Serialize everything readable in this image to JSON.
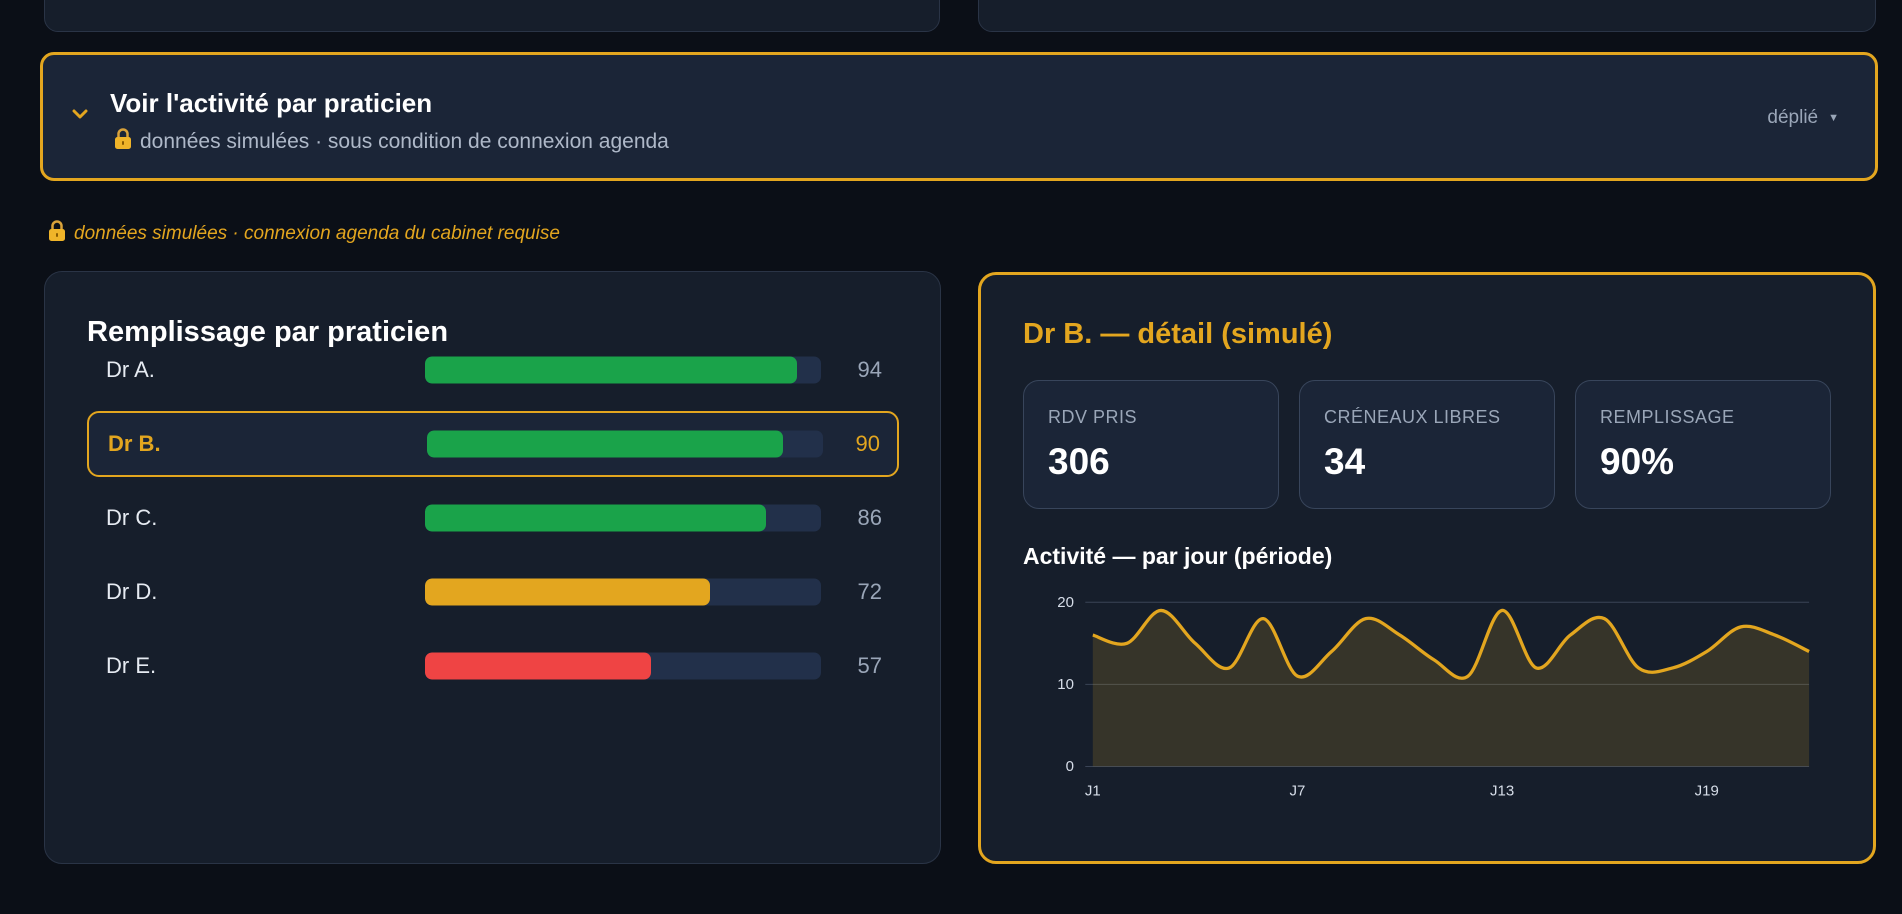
{
  "accordion": {
    "title": "Voir l'activité par praticien",
    "subtitle": "données simulées · sous condition de connexion agenda",
    "state": "déplié",
    "icon": "chevron-down-icon",
    "lock_icon": "lock-icon"
  },
  "notice": {
    "text": "données simulées · connexion agenda du cabinet requise"
  },
  "fill_panel": {
    "title": "Remplissage par praticien",
    "rows": [
      {
        "name": "Dr A.",
        "value": "94",
        "fill": 0.94,
        "color": "#1aa34a",
        "selected": false
      },
      {
        "name": "Dr B.",
        "value": "90",
        "fill": 0.9,
        "color": "#1aa34a",
        "selected": true
      },
      {
        "name": "Dr C.",
        "value": "86",
        "fill": 0.86,
        "color": "#1aa34a",
        "selected": false
      },
      {
        "name": "Dr D.",
        "value": "72",
        "fill": 0.72,
        "color": "#e3a61f",
        "selected": false
      },
      {
        "name": "Dr E.",
        "value": "57",
        "fill": 0.57,
        "color": "#ef4444",
        "selected": false
      }
    ]
  },
  "detail_panel": {
    "title": "Dr B. — détail (simulé)",
    "kpis": [
      {
        "label": "RDV PRIS",
        "value": "306"
      },
      {
        "label": "CRÉNEAUX LIBRES",
        "value": "34"
      },
      {
        "label": "REMPLISSAGE",
        "value": "90%"
      }
    ],
    "chart_title": "Activité — par jour (période)"
  },
  "colors": {
    "accent": "#e3a61f",
    "good": "#1aa34a",
    "bad": "#ef4444"
  },
  "chart_data": {
    "type": "area",
    "title": "Activité — par jour (période)",
    "x": [
      "J1",
      "J2",
      "J3",
      "J4",
      "J5",
      "J6",
      "J7",
      "J8",
      "J9",
      "J10",
      "J11",
      "J12",
      "J13",
      "J14",
      "J15",
      "J16",
      "J17",
      "J18",
      "J19",
      "J20",
      "J21",
      "J22"
    ],
    "x_tick_labels": [
      "J1",
      "J7",
      "J13",
      "J19"
    ],
    "series": [
      {
        "values": [
          16,
          15,
          19,
          15,
          12,
          18,
          11,
          14,
          18,
          16,
          13,
          11,
          19,
          12,
          16,
          18,
          12,
          12,
          14,
          17,
          16,
          14
        ]
      }
    ],
    "y_ticks": [
      0,
      10,
      20
    ],
    "ylim": [
      0,
      20
    ],
    "grid": true,
    "legend": "none"
  }
}
